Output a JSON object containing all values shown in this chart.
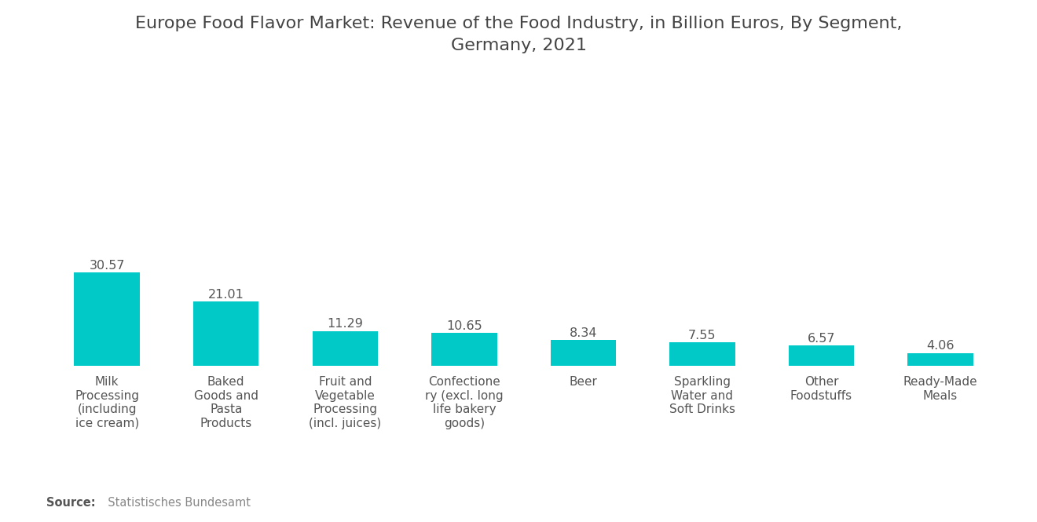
{
  "title": "Europe Food Flavor Market: Revenue of the Food Industry, in Billion Euros, By Segment,\nGermany, 2021",
  "categories": [
    "Milk\nProcessing\n(including\nice cream)",
    "Baked\nGoods and\nPasta\nProducts",
    "Fruit and\nVegetable\nProcessing\n(incl. juices)",
    "Confectione\nry (excl. long\nlife bakery\ngoods)",
    "Beer",
    "Sparkling\nWater and\nSoft Drinks",
    "Other\nFoodstuffs",
    "Ready-Made\nMeals"
  ],
  "values": [
    30.57,
    21.01,
    11.29,
    10.65,
    8.34,
    7.55,
    6.57,
    4.06
  ],
  "bar_color": "#00C9C8",
  "background_color": "#ffffff",
  "title_fontsize": 16,
  "label_fontsize": 11,
  "value_fontsize": 11.5,
  "ylim": [
    0,
    55
  ],
  "source_bold": "Source:",
  "source_normal": "  Statistisches Bundesamt"
}
